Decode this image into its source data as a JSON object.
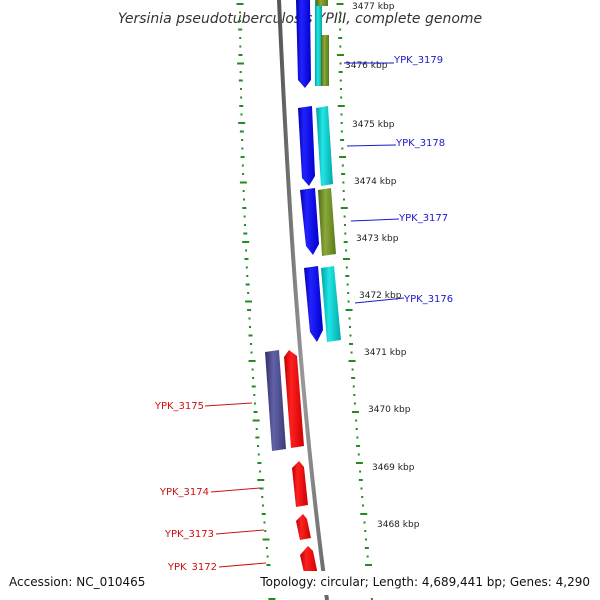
{
  "title": "Yersinia pseudotuberculosis YPIII, complete genome",
  "scale_labels": [
    "3477 kbp",
    "3476 kbp",
    "3475 kbp",
    "3474 kbp",
    "3473 kbp",
    "3472 kbp",
    "3471 kbp",
    "3470 kbp",
    "3469 kbp",
    "3468 kbp"
  ],
  "gene_labels": [
    {
      "name": "YPK_3179",
      "strand": "forward"
    },
    {
      "name": "YPK_3178",
      "strand": "forward"
    },
    {
      "name": "YPK_3177",
      "strand": "forward"
    },
    {
      "name": "YPK_3176",
      "strand": "forward"
    },
    {
      "name": "YPK_3175",
      "strand": "reverse"
    },
    {
      "name": "YPK_3174",
      "strand": "reverse"
    },
    {
      "name": "YPK_3173",
      "strand": "reverse"
    },
    {
      "name": "YPK_3172",
      "strand": "reverse"
    }
  ],
  "footer": {
    "accession": "Accession: NC_010465",
    "summary": "Topology: circular; Length: 4,689,441 bp; Genes: 4,290"
  },
  "colors": {
    "forward_gene": "#0000ee",
    "forward_label": "#1a1acc",
    "reverse_gene": "#ee0000",
    "reverse_label": "#cc1111",
    "cog_cyan": "#00cccc",
    "cog_olive": "#6b8e23",
    "cog_purple": "#4a4a8c",
    "backbone": "#7a7a7a",
    "gc_ticks": "#228b22"
  }
}
